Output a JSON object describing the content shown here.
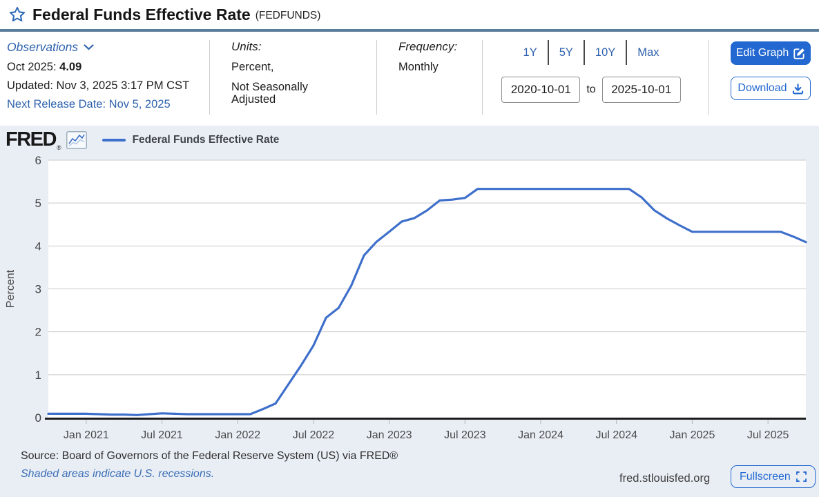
{
  "header": {
    "title": "Federal Funds Effective Rate",
    "series_id": "(FEDFUNDS)"
  },
  "observations": {
    "label": "Observations",
    "latest_period": "Oct 2025:",
    "latest_value": "4.09",
    "updated": "Updated: Nov 3, 2025 3:17 PM CST",
    "next_release": "Next Release Date: Nov 5, 2025"
  },
  "units": {
    "label": "Units:",
    "line1": "Percent,",
    "line2": "Not Seasonally Adjusted"
  },
  "frequency": {
    "label": "Frequency:",
    "value": "Monthly"
  },
  "range": {
    "presets": [
      "1Y",
      "5Y",
      "10Y",
      "Max"
    ],
    "start_date": "2020-10-01",
    "to_label": "to",
    "end_date": "2025-10-01"
  },
  "actions": {
    "edit_graph": "Edit Graph",
    "download": "Download",
    "fullscreen": "Fullscreen"
  },
  "branding": {
    "logo": "FRED",
    "logo_reg": "®",
    "site_url": "fred.stlouisfed.org"
  },
  "legend": {
    "series_label": "Federal Funds Effective Rate"
  },
  "footer": {
    "source": "Source: Board of Governors of the Federal Reserve System (US) via FRED®",
    "recessions_note": "Shaded areas indicate U.S. recessions."
  },
  "colors": {
    "accent_blue": "#2368d1",
    "link_blue": "#2f62ad",
    "line_blue": "#3e6fca",
    "title_separator": "#5b7d9c",
    "chart_region_bg": "#e9eef5",
    "gridline": "#c9c9c9"
  },
  "chart_data": {
    "type": "line",
    "title": "Federal Funds Effective Rate",
    "ylabel": "Percent",
    "ylim": [
      0,
      6
    ],
    "y_ticks": [
      0,
      1,
      2,
      3,
      4,
      5,
      6
    ],
    "grid": true,
    "legend_position": "top-left",
    "x_start_month": "2020-10",
    "x_end_month": "2025-10",
    "frequency": "monthly",
    "x_tick_labels": [
      "Jan 2021",
      "Jul 2021",
      "Jan 2022",
      "Jul 2022",
      "Jan 2023",
      "Jul 2023",
      "Jan 2024",
      "Jul 2024",
      "Jan 2025",
      "Jul 2025"
    ],
    "x_tick_month_indices": [
      3,
      9,
      15,
      21,
      27,
      33,
      39,
      45,
      51,
      57
    ],
    "series": [
      {
        "name": "Federal Funds Effective Rate",
        "color": "#3e6fca",
        "values": [
          0.09,
          0.09,
          0.09,
          0.09,
          0.08,
          0.07,
          0.07,
          0.06,
          0.08,
          0.1,
          0.09,
          0.08,
          0.08,
          0.08,
          0.08,
          0.08,
          0.08,
          0.2,
          0.33,
          0.77,
          1.21,
          1.68,
          2.33,
          2.56,
          3.08,
          3.78,
          4.1,
          4.33,
          4.57,
          4.65,
          4.83,
          5.06,
          5.08,
          5.12,
          5.33,
          5.33,
          5.33,
          5.33,
          5.33,
          5.33,
          5.33,
          5.33,
          5.33,
          5.33,
          5.33,
          5.33,
          5.33,
          5.13,
          4.83,
          4.64,
          4.48,
          4.33,
          4.33,
          4.33,
          4.33,
          4.33,
          4.33,
          4.33,
          4.33,
          4.22,
          4.09
        ]
      }
    ]
  }
}
